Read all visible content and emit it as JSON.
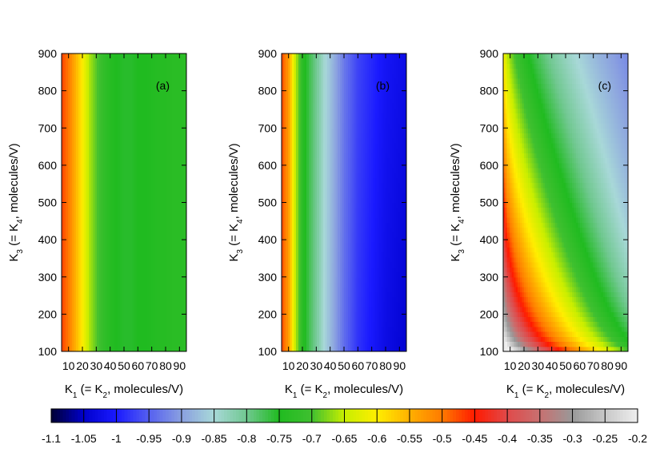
{
  "chart_data": [
    {
      "type": "heatmap",
      "panel_label": "(a)",
      "xlabel": {
        "main": "K",
        "sub1": "1",
        "mid": " (= K",
        "sub2": "2",
        "tail": ", molecules/V)"
      },
      "ylabel": {
        "main": "K",
        "sub1": "3",
        "mid": " (= K",
        "sub2": "4",
        "tail": ", molecules/V)"
      },
      "xlim": [
        5,
        95
      ],
      "ylim": [
        100,
        900
      ],
      "x_ticks": [
        "10",
        "20",
        "30",
        "40",
        "50",
        "60",
        "70",
        "80",
        "90"
      ],
      "y_ticks": [
        "100",
        "200",
        "300",
        "400",
        "500",
        "600",
        "700",
        "800",
        "900"
      ],
      "profile_x": [
        5,
        10,
        15,
        20,
        25,
        30,
        35,
        40,
        45,
        50,
        55,
        60,
        65,
        70,
        75,
        80,
        85,
        90,
        95
      ],
      "profile_values": [
        -0.47,
        -0.5,
        -0.55,
        -0.6,
        -0.66,
        -0.69,
        -0.72,
        -0.74,
        -0.75,
        -0.755,
        -0.755,
        -0.75,
        -0.75,
        -0.745,
        -0.74,
        -0.74,
        -0.735,
        -0.735,
        -0.73
      ],
      "y_dependence": "none"
    },
    {
      "type": "heatmap",
      "panel_label": "(b)",
      "xlabel": {
        "main": "K",
        "sub1": "1",
        "mid": " (= K",
        "sub2": "2",
        "tail": ", molecules/V)"
      },
      "ylabel": {
        "main": "K",
        "sub1": "3",
        "mid": " (= K",
        "sub2": "4",
        "tail": ", molecules/V)"
      },
      "xlim": [
        5,
        95
      ],
      "ylim": [
        100,
        900
      ],
      "x_ticks": [
        "10",
        "20",
        "30",
        "40",
        "50",
        "60",
        "70",
        "80",
        "90"
      ],
      "y_ticks": [
        "100",
        "200",
        "300",
        "400",
        "500",
        "600",
        "700",
        "800",
        "900"
      ],
      "profile_x": [
        5,
        10,
        15,
        20,
        25,
        30,
        35,
        40,
        45,
        50,
        55,
        60,
        65,
        70,
        75,
        80,
        85,
        90,
        95
      ],
      "profile_values": [
        -0.47,
        -0.53,
        -0.65,
        -0.73,
        -0.77,
        -0.8,
        -0.84,
        -0.87,
        -0.9,
        -0.93,
        -0.95,
        -0.97,
        -0.98,
        -0.99,
        -1.0,
        -1.01,
        -1.015,
        -1.02,
        -1.025
      ],
      "y_dependence": "slight"
    },
    {
      "type": "heatmap",
      "panel_label": "(c)",
      "xlabel": {
        "main": "K",
        "sub1": "1",
        "mid": " (= K",
        "sub2": "2",
        "tail": ", molecules/V)"
      },
      "ylabel": {
        "main": "K",
        "sub1": "3",
        "mid": " (= K",
        "sub2": "4",
        "tail": ", molecules/V)"
      },
      "xlim": [
        5,
        95
      ],
      "ylim": [
        100,
        900
      ],
      "x_ticks": [
        "10",
        "20",
        "30",
        "40",
        "50",
        "60",
        "70",
        "80",
        "90"
      ],
      "y_ticks": [
        "100",
        "200",
        "300",
        "400",
        "500",
        "600",
        "700",
        "800",
        "900"
      ],
      "model": "value decreases from about -0.45 near K1=5 or K3=100 to about -0.88 at K1=95, K3=900",
      "corner_values": {
        "x5_y100": -0.3,
        "x5_y900": -0.47,
        "x95_y100": -0.55,
        "x95_y900": -0.87
      }
    }
  ],
  "colorbar": {
    "min": -1.1,
    "max": -0.2,
    "tick_labels": [
      "-1.1",
      "-1.05",
      "-1",
      "-0.95",
      "-0.9",
      "-0.85",
      "-0.8",
      "-0.75",
      "-0.7",
      "-0.65",
      "-0.6",
      "-0.55",
      "-0.5",
      "-0.45",
      "-0.4",
      "-0.35",
      "-0.3",
      "-0.25",
      "-0.2"
    ],
    "stops": [
      {
        "v": -1.1,
        "color": "#000033"
      },
      {
        "v": -1.05,
        "color": "#0000cc"
      },
      {
        "v": -1.0,
        "color": "#1a1aff"
      },
      {
        "v": -0.95,
        "color": "#5560f0"
      },
      {
        "v": -0.9,
        "color": "#8aa0e0"
      },
      {
        "v": -0.85,
        "color": "#a8d8d8"
      },
      {
        "v": -0.8,
        "color": "#70c890"
      },
      {
        "v": -0.75,
        "color": "#20bb20"
      },
      {
        "v": -0.7,
        "color": "#40c030"
      },
      {
        "v": -0.65,
        "color": "#c8ee00"
      },
      {
        "v": -0.6,
        "color": "#ffee00"
      },
      {
        "v": -0.55,
        "color": "#ffb000"
      },
      {
        "v": -0.5,
        "color": "#ff7a00"
      },
      {
        "v": -0.45,
        "color": "#ff1a00"
      },
      {
        "v": -0.4,
        "color": "#e04a4a"
      },
      {
        "v": -0.35,
        "color": "#c87070"
      },
      {
        "v": -0.3,
        "color": "#999999"
      },
      {
        "v": -0.25,
        "color": "#c8c8c8"
      },
      {
        "v": -0.2,
        "color": "#eeeeee"
      }
    ]
  }
}
